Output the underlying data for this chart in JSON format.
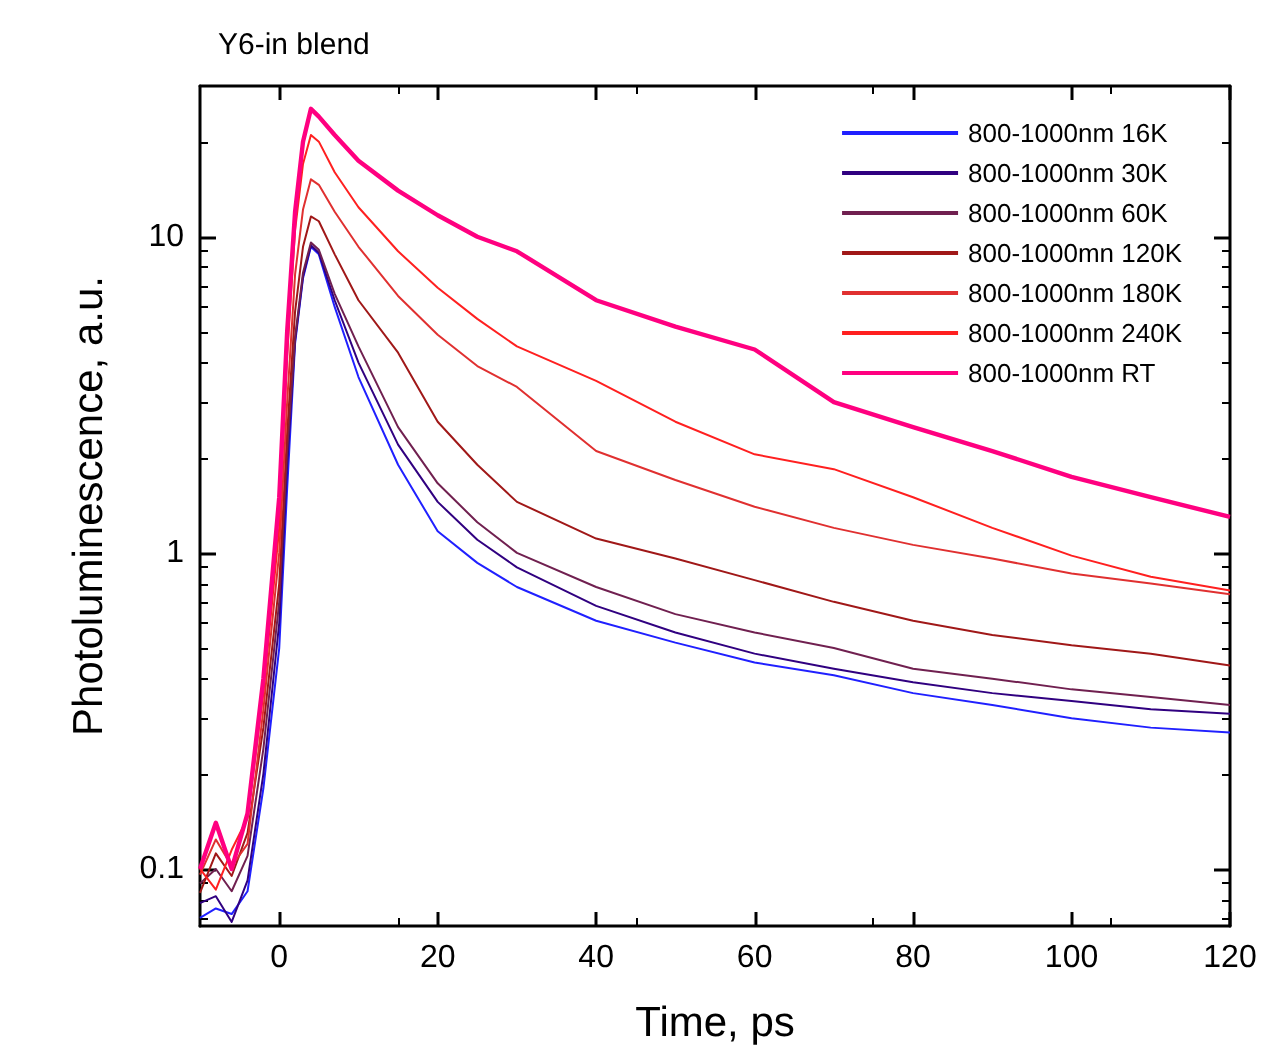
{
  "chart_data": {
    "type": "line",
    "title": "Y6-in blend",
    "xlabel": "Time, ps",
    "ylabel": "Photoluminescence, a.u.",
    "x": [
      -10,
      -8,
      -6,
      -4,
      -2,
      0,
      1,
      2,
      3,
      4,
      5,
      7,
      10,
      15,
      20,
      25,
      30,
      40,
      50,
      60,
      70,
      80,
      90,
      100,
      110,
      120
    ],
    "series": [
      {
        "name": "800-1000nm 16K",
        "color": "#2020ff",
        "values": [
          0.07,
          0.075,
          0.072,
          0.085,
          0.18,
          0.5,
          1.6,
          4.6,
          7.4,
          9.3,
          8.8,
          6.0,
          3.6,
          1.9,
          1.17,
          0.93,
          0.78,
          0.61,
          0.52,
          0.45,
          0.41,
          0.36,
          0.33,
          0.3,
          0.28,
          0.27
        ]
      },
      {
        "name": "800-1000nm 30K",
        "color": "#300080",
        "values": [
          0.078,
          0.082,
          0.068,
          0.092,
          0.2,
          0.6,
          1.9,
          4.7,
          7.5,
          9.4,
          8.9,
          6.3,
          4.0,
          2.2,
          1.45,
          1.1,
          0.9,
          0.68,
          0.56,
          0.48,
          0.43,
          0.39,
          0.36,
          0.34,
          0.32,
          0.31
        ]
      },
      {
        "name": "800-1000nm 60K",
        "color": "#702050",
        "values": [
          0.09,
          0.1,
          0.085,
          0.11,
          0.24,
          0.7,
          2.1,
          4.8,
          7.7,
          9.6,
          9.1,
          6.6,
          4.5,
          2.5,
          1.66,
          1.25,
          1.0,
          0.78,
          0.64,
          0.56,
          0.5,
          0.43,
          0.4,
          0.37,
          0.35,
          0.33
        ]
      },
      {
        "name": "800-1000mn 120K",
        "color": "#a01818",
        "values": [
          0.084,
          0.112,
          0.095,
          0.13,
          0.28,
          0.8,
          2.4,
          5.8,
          9.3,
          11.6,
          11.2,
          8.8,
          6.3,
          4.3,
          2.6,
          1.9,
          1.45,
          1.11,
          0.96,
          0.82,
          0.7,
          0.61,
          0.55,
          0.51,
          0.48,
          0.44
        ]
      },
      {
        "name": "800-1000nm 180K",
        "color": "#e03030",
        "values": [
          0.096,
          0.124,
          0.102,
          0.12,
          0.32,
          1.0,
          3.0,
          7.6,
          12.2,
          15.2,
          14.6,
          12,
          9.3,
          6.5,
          4.9,
          3.9,
          3.35,
          2.1,
          1.7,
          1.4,
          1.2,
          1.06,
          0.96,
          0.86,
          0.8,
          0.74
        ]
      },
      {
        "name": "800-1000nm 240K",
        "color": "#ff2020",
        "values": [
          0.1,
          0.086,
          0.115,
          0.145,
          0.36,
          1.2,
          4.2,
          10.5,
          17,
          21,
          20,
          16,
          12.4,
          9,
          6.9,
          5.5,
          4.5,
          3.5,
          2.6,
          2.05,
          1.84,
          1.5,
          1.2,
          0.98,
          0.84,
          0.76
        ]
      },
      {
        "name": "800-1000nm RT",
        "color": "#ff0080",
        "values": [
          0.1,
          0.14,
          0.1,
          0.15,
          0.4,
          1.5,
          5,
          12,
          20,
          25.4,
          24,
          21,
          17.4,
          14,
          11.7,
          10,
          9,
          6.3,
          5.2,
          4.4,
          3.0,
          2.5,
          2.1,
          1.74,
          1.5,
          1.3
        ]
      }
    ],
    "xlim": [
      -10,
      120
    ],
    "xticks": [
      0,
      20,
      40,
      60,
      80,
      100,
      120
    ],
    "ylim": [
      0.066,
      30
    ],
    "yticks": [
      0.1,
      1,
      10
    ],
    "log": "y",
    "legend": "top right",
    "grid": false,
    "marker": "none",
    "line_style": "solid"
  }
}
